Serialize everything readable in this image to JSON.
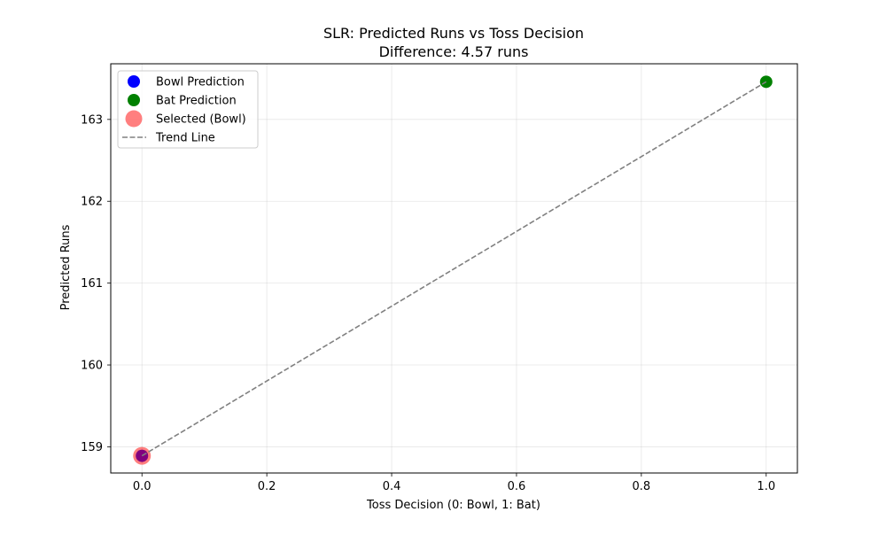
{
  "chart_data": {
    "type": "scatter",
    "title": "SLR: Predicted Runs vs Toss Decision",
    "subtitle": "Difference: 4.57 runs",
    "xlabel": "Toss Decision (0: Bowl, 1: Bat)",
    "ylabel": "Predicted Runs",
    "xlim": [
      -0.05,
      1.05
    ],
    "ylim": [
      158.68,
      163.68
    ],
    "xticks": [
      0.0,
      0.2,
      0.4,
      0.6,
      0.8,
      1.0
    ],
    "xtick_labels": [
      "0.0",
      "0.2",
      "0.4",
      "0.6",
      "0.8",
      "1.0"
    ],
    "yticks": [
      159,
      160,
      161,
      162,
      163
    ],
    "ytick_labels": [
      "159",
      "160",
      "161",
      "162",
      "163"
    ],
    "grid": true,
    "legend_position": "top-left",
    "series": [
      {
        "name": "Bowl Prediction",
        "kind": "point",
        "color": "#0000ff",
        "points": [
          {
            "x": 0,
            "y": 158.89
          }
        ]
      },
      {
        "name": "Bat Prediction",
        "kind": "point",
        "color": "#008000",
        "points": [
          {
            "x": 1,
            "y": 163.46
          }
        ]
      },
      {
        "name": "Selected (Bowl)",
        "kind": "highlight",
        "color": "#ff0000",
        "opacity": 0.5,
        "points": [
          {
            "x": 0,
            "y": 158.89
          }
        ]
      },
      {
        "name": "Trend Line",
        "kind": "line",
        "style": "dashed",
        "color": "#808080",
        "points": [
          {
            "x": 0,
            "y": 158.89
          },
          {
            "x": 1,
            "y": 163.46
          }
        ]
      }
    ]
  }
}
